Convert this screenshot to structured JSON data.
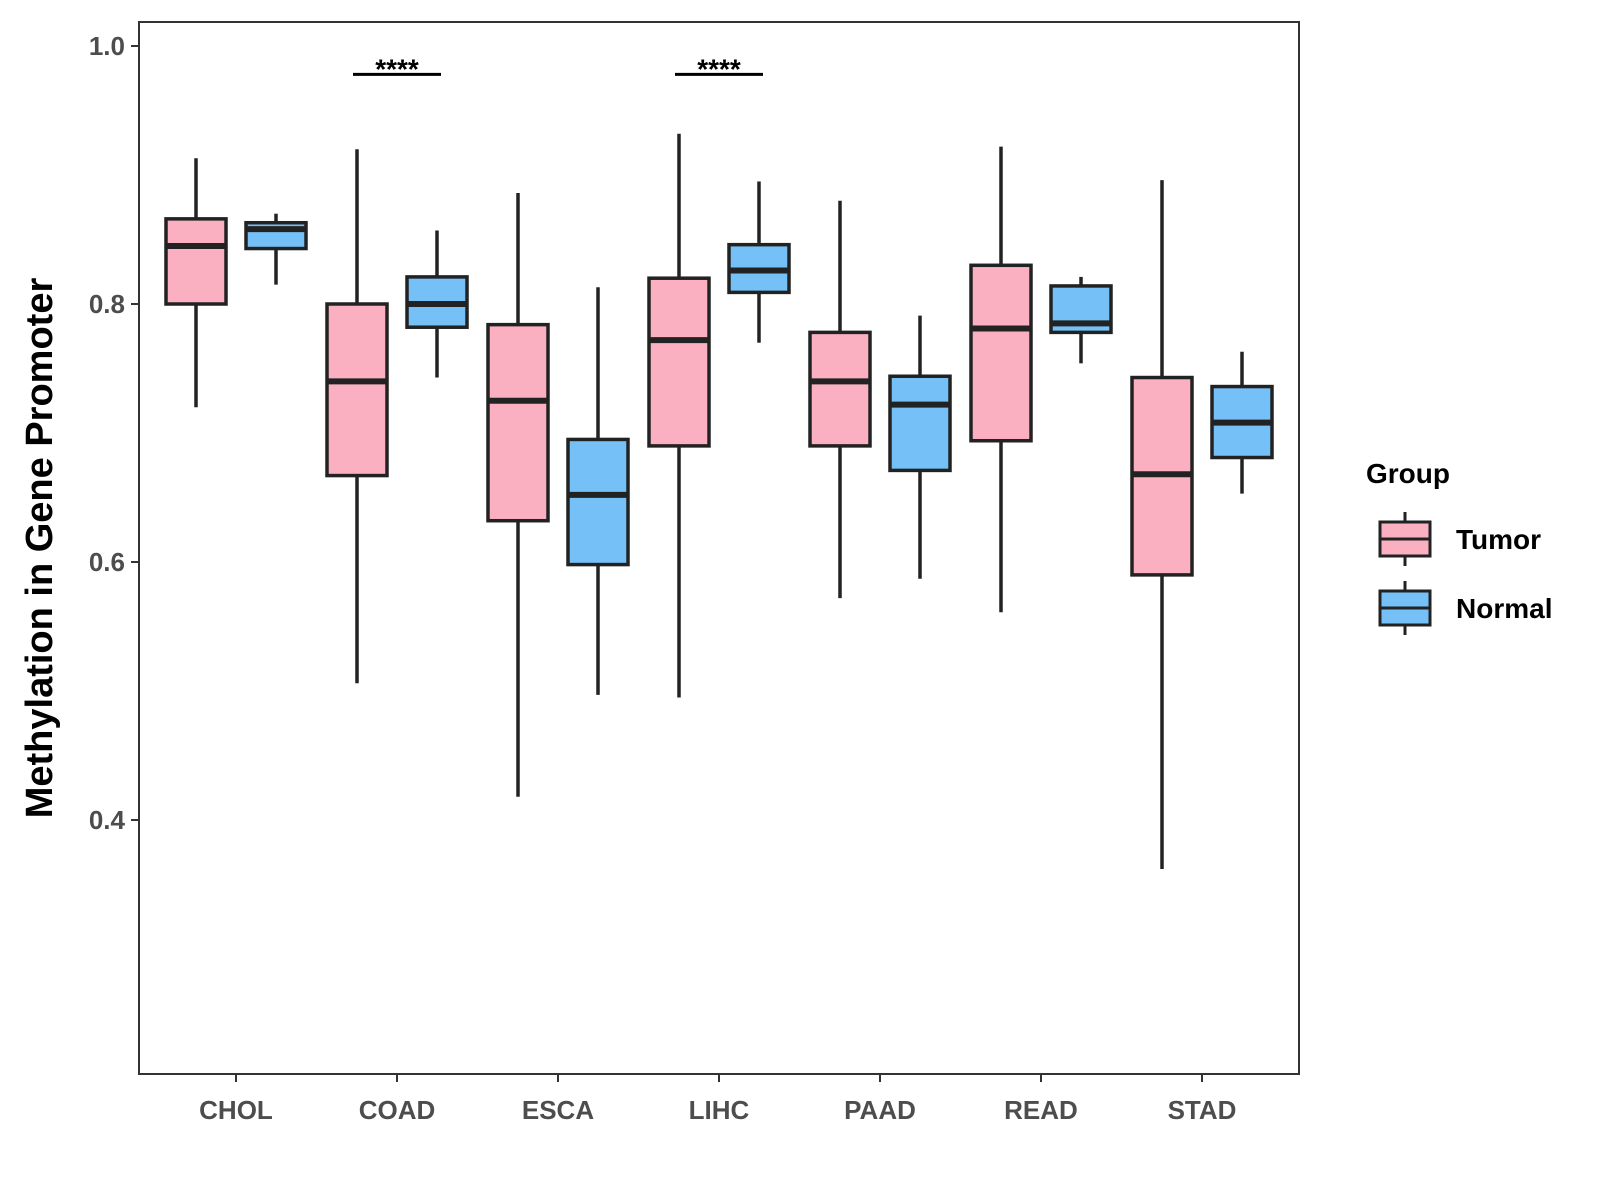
{
  "chart_data": {
    "type": "boxplot",
    "title": "",
    "xlabel": "",
    "ylabel": "Methylation in Gene Promoter",
    "ylim": [
      0.2,
      1.02
    ],
    "yticks": [
      0.4,
      0.6,
      0.8,
      1.0
    ],
    "ytick_labels": [
      "0.4",
      "0.6",
      "0.8",
      "1.0"
    ],
    "categories": [
      "CHOL",
      "COAD",
      "ESCA",
      "LIHC",
      "PAAD",
      "READ",
      "STAD"
    ],
    "grid": false,
    "legend": {
      "title": "Group",
      "position": "right",
      "entries": [
        {
          "name": "Tumor",
          "color": "#FBB0C2"
        },
        {
          "name": "Normal",
          "color": "#76C0F8"
        }
      ]
    },
    "series": [
      {
        "name": "Tumor",
        "color": "#FBB0C2",
        "boxes": [
          {
            "category": "CHOL",
            "min": 0.72,
            "q1": 0.8,
            "median": 0.845,
            "q3": 0.866,
            "max": 0.913
          },
          {
            "category": "COAD",
            "min": 0.506,
            "q1": 0.667,
            "median": 0.74,
            "q3": 0.8,
            "max": 0.92
          },
          {
            "category": "ESCA",
            "min": 0.418,
            "q1": 0.632,
            "median": 0.725,
            "q3": 0.784,
            "max": 0.886
          },
          {
            "category": "LIHC",
            "min": 0.495,
            "q1": 0.69,
            "median": 0.772,
            "q3": 0.82,
            "max": 0.932
          },
          {
            "category": "PAAD",
            "min": 0.572,
            "q1": 0.69,
            "median": 0.74,
            "q3": 0.778,
            "max": 0.88
          },
          {
            "category": "READ",
            "min": 0.561,
            "q1": 0.694,
            "median": 0.781,
            "q3": 0.83,
            "max": 0.922
          },
          {
            "category": "STAD",
            "min": 0.362,
            "q1": 0.59,
            "median": 0.668,
            "q3": 0.743,
            "max": 0.896
          }
        ]
      },
      {
        "name": "Normal",
        "color": "#76C0F8",
        "boxes": [
          {
            "category": "CHOL",
            "min": 0.815,
            "q1": 0.843,
            "median": 0.858,
            "q3": 0.863,
            "max": 0.87
          },
          {
            "category": "COAD",
            "min": 0.743,
            "q1": 0.782,
            "median": 0.8,
            "q3": 0.821,
            "max": 0.857
          },
          {
            "category": "ESCA",
            "min": 0.497,
            "q1": 0.598,
            "median": 0.652,
            "q3": 0.695,
            "max": 0.813
          },
          {
            "category": "LIHC",
            "min": 0.77,
            "q1": 0.809,
            "median": 0.826,
            "q3": 0.846,
            "max": 0.895
          },
          {
            "category": "PAAD",
            "min": 0.587,
            "q1": 0.671,
            "median": 0.722,
            "q3": 0.744,
            "max": 0.791
          },
          {
            "category": "READ",
            "min": 0.754,
            "q1": 0.778,
            "median": 0.785,
            "q3": 0.814,
            "max": 0.821
          },
          {
            "category": "STAD",
            "min": 0.653,
            "q1": 0.681,
            "median": 0.708,
            "q3": 0.736,
            "max": 0.763
          }
        ]
      }
    ],
    "annotations": [
      {
        "category": "COAD",
        "text": "****",
        "y": 0.978
      },
      {
        "category": "LIHC",
        "text": "****",
        "y": 0.978
      }
    ]
  }
}
